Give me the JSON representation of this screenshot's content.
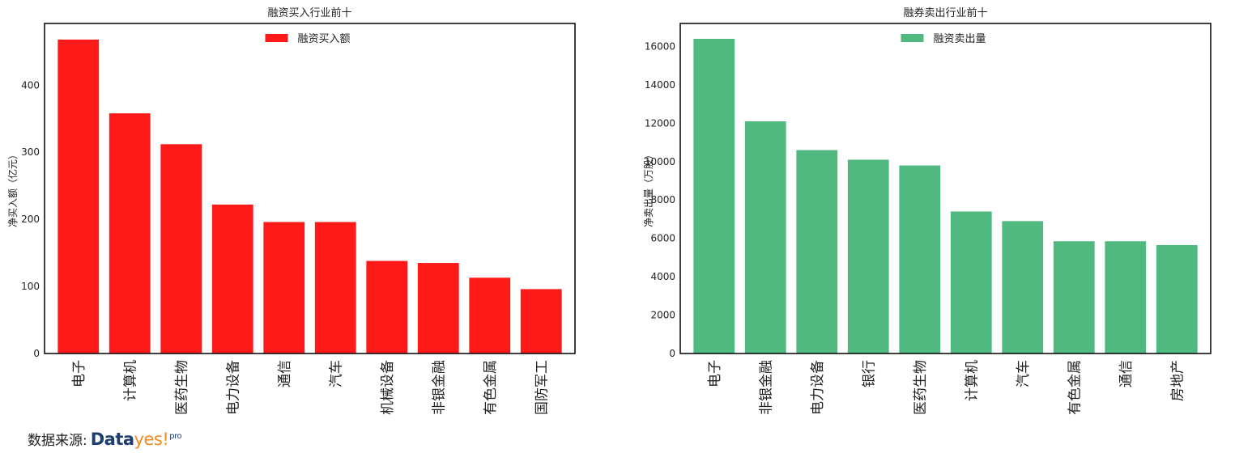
{
  "chart_data": [
    {
      "type": "bar",
      "title": "融资买入行业前十",
      "ylabel": "净买入额（亿元）",
      "xlabel": "",
      "series": [
        {
          "name": "融资买入额",
          "values": [
            468,
            358,
            312,
            222,
            196,
            196,
            138,
            135,
            113,
            96
          ]
        }
      ],
      "categories": [
        "电子",
        "计算机",
        "医药生物",
        "电力设备",
        "通信",
        "汽车",
        "机械设备",
        "非银金融",
        "有色金属",
        "国防军工"
      ],
      "ylim": [
        0,
        492
      ],
      "yticks": [
        0,
        100,
        200,
        300,
        400
      ],
      "color": "#ff1a1a",
      "legend": "top-center",
      "grid": false
    },
    {
      "type": "bar",
      "title": "融券卖出行业前十",
      "ylabel": "净卖出量（万股）",
      "xlabel": "",
      "series": [
        {
          "name": "融资卖出量",
          "values": [
            16400,
            12100,
            10600,
            10100,
            9800,
            7400,
            6900,
            5850,
            5850,
            5650
          ]
        }
      ],
      "categories": [
        "电子",
        "非银金融",
        "电力设备",
        "银行",
        "医药生物",
        "计算机",
        "汽车",
        "有色金属",
        "通信",
        "房地产"
      ],
      "ylim": [
        0,
        17200
      ],
      "yticks": [
        0,
        2000,
        4000,
        6000,
        8000,
        10000,
        12000,
        14000,
        16000
      ],
      "color": "#50b97f",
      "legend": "top-center",
      "grid": false
    }
  ],
  "footer": {
    "source_label": "数据来源:",
    "logo": {
      "part1": "Data",
      "part2": "yes!",
      "part3": "pro"
    }
  }
}
